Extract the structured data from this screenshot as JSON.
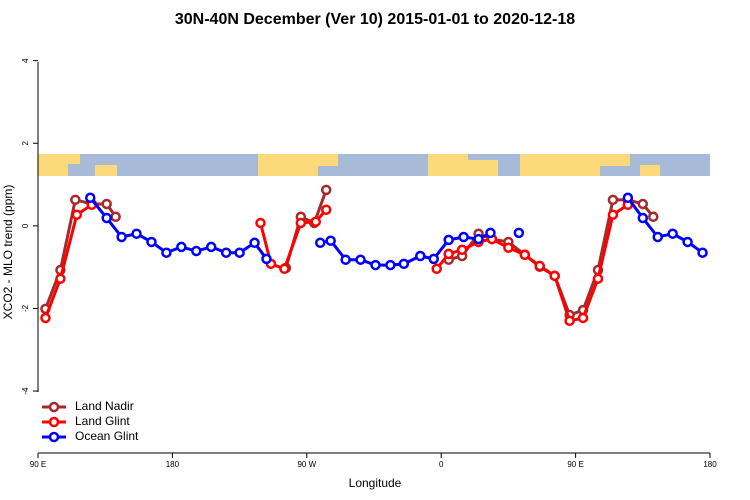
{
  "chart_data": {
    "type": "line",
    "title": "30N-40N December (Ver 10)   2015-01-01 to 2020-12-18",
    "x_label": "Longitude",
    "y_label": "XCO2 - MLO trend (ppm)",
    "xlim": [
      90,
      540
    ],
    "ylim": [
      -5.5,
      4.5
    ],
    "xticks": [
      {
        "value": 90,
        "label": "90 E"
      },
      180,
      {
        "value": 270,
        "label": "90 W"
      },
      {
        "value": 360,
        "label": "0"
      },
      {
        "value": 450,
        "label": "90 E"
      },
      {
        "value": 540,
        "label": "180"
      }
    ],
    "yticks": [
      -4,
      -2,
      0,
      2,
      4
    ],
    "legend": "bottom-left",
    "series": [
      {
        "name": "Land Nadir",
        "color": "#a52a2a",
        "x": [
          95,
          105,
          115,
          126,
          136,
          142,
          null,
          256,
          266,
          275,
          283,
          null,
          365,
          374,
          385,
          394,
          405,
          416,
          426,
          436,
          446,
          455,
          465,
          475,
          485,
          495,
          502
        ],
        "values": [
          -2.01,
          -1.07,
          0.63,
          0.53,
          0.53,
          0.22,
          null,
          -1.02,
          0.22,
          0.07,
          0.87,
          null,
          -0.82,
          -0.73,
          -0.19,
          -0.32,
          -0.39,
          -0.7,
          -0.99,
          -1.21,
          -2.16,
          -2.04,
          -1.07,
          0.63,
          0.63,
          0.53,
          0.22
        ]
      },
      {
        "name": "Land Glint",
        "color": "#ff0000",
        "x": [
          95,
          105,
          116,
          126,
          null,
          239,
          246,
          255,
          266,
          276,
          283,
          null,
          357,
          365,
          374,
          385,
          394,
          405,
          416,
          426,
          436,
          446,
          455,
          465,
          475,
          485
        ],
        "values": [
          -2.23,
          -1.28,
          0.27,
          0.51,
          null,
          0.07,
          -0.92,
          -1.04,
          0.07,
          0.1,
          0.39,
          null,
          -1.04,
          -0.68,
          -0.58,
          -0.39,
          -0.32,
          -0.53,
          -0.7,
          -0.97,
          -1.21,
          -2.3,
          -2.23,
          -1.28,
          0.27,
          0.51
        ]
      },
      {
        "name": "Ocean Glint",
        "color": "#0000ff",
        "x": [
          125,
          136,
          146,
          156,
          166,
          176,
          186,
          196,
          206,
          216,
          225,
          235,
          243,
          null,
          279,
          286,
          296,
          306,
          316,
          326,
          335,
          346,
          355,
          365,
          375,
          385,
          393,
          null,
          412,
          null,
          485,
          495,
          505,
          515,
          525,
          535
        ],
        "values": [
          0.68,
          0.19,
          -0.27,
          -0.19,
          -0.39,
          -0.65,
          -0.51,
          -0.61,
          -0.51,
          -0.65,
          -0.65,
          -0.41,
          -0.8,
          null,
          -0.41,
          -0.36,
          -0.82,
          -0.82,
          -0.95,
          -0.95,
          -0.92,
          -0.73,
          -0.8,
          -0.34,
          -0.27,
          -0.32,
          -0.17,
          null,
          -0.17,
          null,
          0.68,
          0.19,
          -0.27,
          -0.19,
          -0.39,
          -0.65
        ]
      }
    ]
  }
}
